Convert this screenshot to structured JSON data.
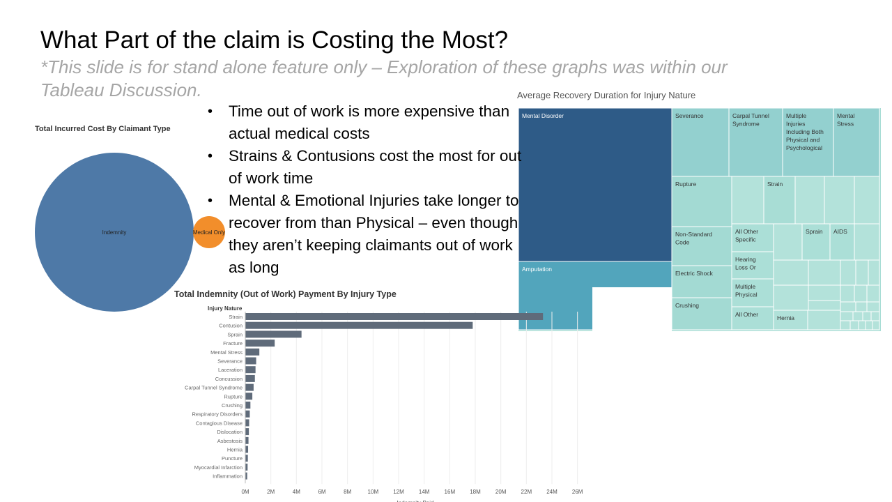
{
  "slide": {
    "title": "What Part of the claim is Costing the Most?",
    "subtitle": "*This slide is for stand alone feature only – Exploration of these graphs was within our Tableau Discussion.",
    "bullets": [
      "Time out of work is more expensive than actual medical costs",
      "Strains & Contusions cost the most for out of work time",
      "Mental & Emotional Injuries take longer to recover from than Physical – even though they aren’t keeping claimants out of work as long"
    ]
  },
  "chart_data": [
    {
      "type": "bubble",
      "title": "Total Incurred Cost By Claimant Type",
      "labels": [
        "Indemnity",
        "Medical Only"
      ],
      "values": [
        100,
        4
      ],
      "colors": [
        "#4e79a7",
        "#f28e2b"
      ]
    },
    {
      "type": "bar",
      "orientation": "horizontal",
      "title": "Total Indemnity (Out of Work) Payment By Injury Type",
      "category_header": "Injury Nature",
      "xlabel": "Indemnity Paid",
      "xlim": [
        0,
        27
      ],
      "unit": "M",
      "tick_labels": [
        "0M",
        "2M",
        "4M",
        "6M",
        "8M",
        "10M",
        "12M",
        "14M",
        "16M",
        "18M",
        "20M",
        "22M",
        "24M",
        "26M"
      ],
      "categories": [
        "Strain",
        "Contusion",
        "Sprain",
        "Fracture",
        "Mental Stress",
        "Severance",
        "Laceration",
        "Concussion",
        "Carpal Tunnel Syndrome",
        "Rupture",
        "Crushing",
        "Respiratory Disorders",
        "Contagious Disease",
        "Dislocation",
        "Asbestosis",
        "Hernia",
        "Puncture",
        "Myocardial Infarction",
        "Inflammation"
      ],
      "values": [
        23.3,
        17.8,
        4.4,
        2.3,
        1.1,
        0.85,
        0.8,
        0.75,
        0.65,
        0.55,
        0.4,
        0.35,
        0.3,
        0.28,
        0.25,
        0.22,
        0.2,
        0.18,
        0.15
      ],
      "bar_color": "#5f6b7a"
    },
    {
      "type": "treemap",
      "title": "Average Recovery Duration for Injury Nature",
      "tiles": [
        {
          "label": "Mental Disorder",
          "color": "#2e5b87",
          "text_color": "#ffffff"
        },
        {
          "label": "Amputation",
          "color": "#52a5bc",
          "text_color": "#ffffff"
        },
        {
          "label": "Severance",
          "color": "#93d0cf",
          "text_color": "#333333"
        },
        {
          "label": "Carpal Tunnel Syndrome",
          "color": "#93d0cf",
          "text_color": "#333333"
        },
        {
          "label": "Multiple Injuries Including Both Physical and Psychological",
          "color": "#93d0cf",
          "text_color": "#333333"
        },
        {
          "label": "Mental Stress",
          "color": "#93d0cf",
          "text_color": "#333333"
        },
        {
          "label": "Rupture",
          "color": "#a3dad3",
          "text_color": "#333333"
        },
        {
          "label": "Strain",
          "color": "#a8ddd5",
          "text_color": "#333333"
        },
        {
          "label": "Non-Standard Code",
          "color": "#a3dad3",
          "text_color": "#333333"
        },
        {
          "label": "All Other Specific",
          "color": "#abdfd7",
          "text_color": "#333333"
        },
        {
          "label": "Sprain",
          "color": "#abdfd7",
          "text_color": "#333333"
        },
        {
          "label": "AIDS",
          "color": "#abdfd7",
          "text_color": "#333333"
        },
        {
          "label": "Electric Shock",
          "color": "#a3dad3",
          "text_color": "#333333"
        },
        {
          "label": "Hearing Loss Or",
          "color": "#abdfd7",
          "text_color": "#333333"
        },
        {
          "label": "Multiple Physical",
          "color": "#abdfd7",
          "text_color": "#333333"
        },
        {
          "label": "Crushing",
          "color": "#a3dad3",
          "text_color": "#333333"
        },
        {
          "label": "All Other",
          "color": "#abdfd7",
          "text_color": "#333333"
        },
        {
          "label": "Hernia",
          "color": "#b0e1d9",
          "text_color": "#333333"
        }
      ]
    }
  ]
}
